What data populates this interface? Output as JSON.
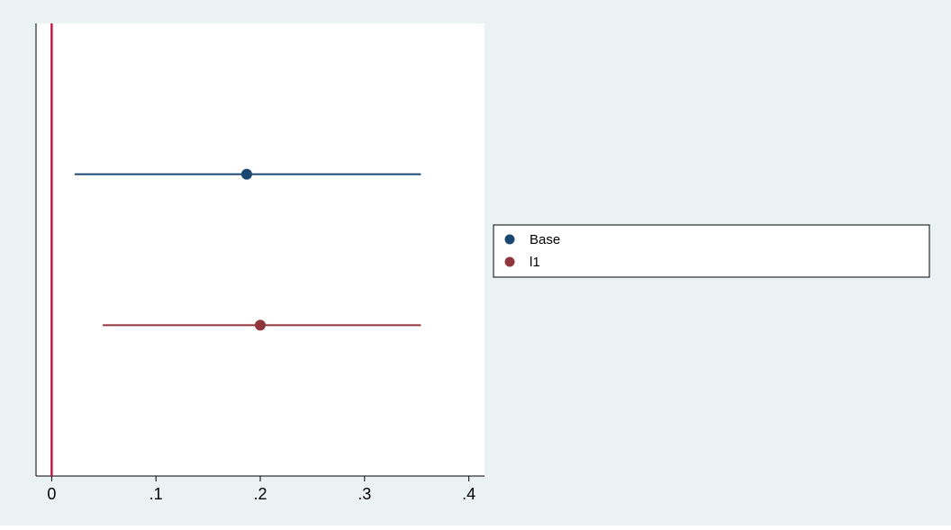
{
  "chart_data": {
    "type": "scatter",
    "subtype": "coefficient-plot",
    "title": "",
    "xlabel": "",
    "ylabel": "",
    "xlim": [
      -0.015,
      0.415
    ],
    "xticks": [
      {
        "value": 0,
        "label": "0"
      },
      {
        "value": 0.1,
        "label": ".1"
      },
      {
        "value": 0.2,
        "label": ".2"
      },
      {
        "value": 0.3,
        "label": ".3"
      },
      {
        "value": 0.4,
        "label": ".4"
      }
    ],
    "reference_line": {
      "x": 0,
      "color": "#c4103f"
    },
    "grid": false,
    "legend_position": "right",
    "series": [
      {
        "name": "Base",
        "estimate": 0.187,
        "ci": [
          0.022,
          0.354
        ],
        "color": "#1a476f"
      },
      {
        "name": "l1",
        "estimate": 0.2,
        "ci": [
          0.049,
          0.354
        ],
        "color": "#90353b"
      }
    ]
  },
  "colors": {
    "background": "#eaf2f3",
    "plot_area": "#ffffff",
    "axis": "#000000"
  }
}
